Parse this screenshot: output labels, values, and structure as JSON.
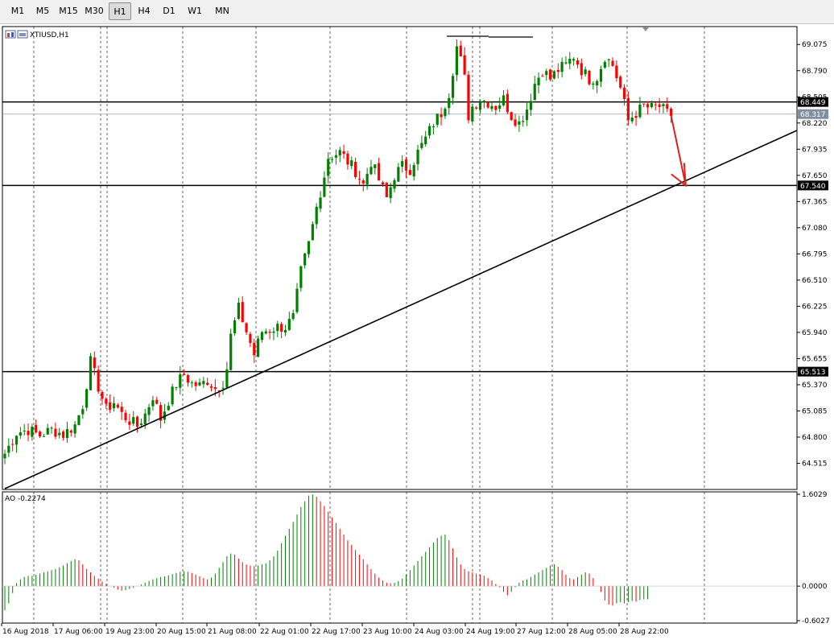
{
  "toolbar": {
    "timeframes": [
      "M1",
      "M5",
      "M15",
      "M30",
      "H1",
      "H4",
      "D1",
      "W1",
      "MN"
    ],
    "active": "H1"
  },
  "colors": {
    "bull": "#008000",
    "bear": "#ff0000",
    "lines": "#000000",
    "price_line": "#8fa5b8",
    "arrow": "#e02020",
    "grid": "#000000",
    "label_bg": "#000000",
    "price_label_bg": "#7f8f9f"
  },
  "chart_data": [
    {
      "type": "candlestick",
      "title": "XTIUSD,H1",
      "icon": "chart-window-icon",
      "ylim": [
        64.23,
        69.27
      ],
      "yticks": [
        "69.075",
        "68.790",
        "68.505",
        "68.220",
        "67.935",
        "67.650",
        "67.365",
        "67.080",
        "66.795",
        "66.510",
        "66.225",
        "65.940",
        "65.655",
        "65.370",
        "65.085",
        "64.800",
        "64.515"
      ],
      "xticks": [
        "16 Aug 2018",
        "17 Aug 06:00",
        "19 Aug 23:00",
        "20 Aug 15:00",
        "21 Aug 08:00",
        "22 Aug 01:00",
        "22 Aug 17:00",
        "23 Aug 10:00",
        "24 Aug 03:00",
        "24 Aug 19:00",
        "27 Aug 12:00",
        "28 Aug 05:00",
        "28 Aug 22:00"
      ],
      "horizontal_levels": [
        {
          "price": 68.449,
          "label": "68.449"
        },
        {
          "price": 67.54,
          "label": "67.540"
        },
        {
          "price": 65.513,
          "label": "65.513"
        }
      ],
      "current_price": {
        "price": 68.317,
        "label": "68.317"
      },
      "close_path": [
        [
          0,
          64.62
        ],
        [
          3,
          64.85
        ],
        [
          6,
          64.88
        ],
        [
          9,
          64.82
        ],
        [
          12,
          64.88
        ],
        [
          15,
          64.83
        ],
        [
          18,
          64.93
        ],
        [
          20,
          65.15
        ],
        [
          22,
          65.62
        ],
        [
          24,
          65.35
        ],
        [
          26,
          65.1
        ],
        [
          28,
          65.18
        ],
        [
          30,
          65.05
        ],
        [
          32,
          64.98
        ],
        [
          34,
          64.92
        ],
        [
          36,
          65.05
        ],
        [
          38,
          65.25
        ],
        [
          40,
          65.0
        ],
        [
          42,
          65.2
        ],
        [
          44,
          65.38
        ],
        [
          46,
          65.48
        ],
        [
          48,
          65.38
        ],
        [
          50,
          65.36
        ],
        [
          52,
          65.42
        ],
        [
          54,
          65.33
        ],
        [
          56,
          65.4
        ],
        [
          57,
          65.55
        ],
        [
          58,
          65.9
        ],
        [
          60,
          66.2
        ],
        [
          62,
          65.95
        ],
        [
          64,
          65.7
        ],
        [
          66,
          65.95
        ],
        [
          68,
          65.97
        ],
        [
          70,
          66.0
        ],
        [
          72,
          66.0
        ],
        [
          74,
          66.1
        ],
        [
          76,
          66.6
        ],
        [
          78,
          66.9
        ],
        [
          80,
          67.3
        ],
        [
          82,
          67.65
        ],
        [
          83,
          67.85
        ],
        [
          86,
          67.9
        ],
        [
          88,
          67.8
        ],
        [
          90,
          67.7
        ],
        [
          92,
          67.55
        ],
        [
          94,
          67.8
        ],
        [
          96,
          67.6
        ],
        [
          98,
          67.4
        ],
        [
          100,
          67.65
        ],
        [
          102,
          67.75
        ],
        [
          104,
          67.72
        ],
        [
          106,
          67.9
        ],
        [
          108,
          68.05
        ],
        [
          110,
          68.22
        ],
        [
          112,
          68.33
        ],
        [
          114,
          68.55
        ],
        [
          115,
          68.8
        ],
        [
          116,
          69.05
        ],
        [
          117,
          68.9
        ],
        [
          118,
          68.7
        ],
        [
          119,
          68.3
        ],
        [
          120,
          68.4
        ],
        [
          122,
          68.48
        ],
        [
          124,
          68.45
        ],
        [
          126,
          68.4
        ],
        [
          128,
          68.48
        ],
        [
          130,
          68.3
        ],
        [
          132,
          68.22
        ],
        [
          134,
          68.38
        ],
        [
          136,
          68.65
        ],
        [
          138,
          68.8
        ],
        [
          140,
          68.7
        ],
        [
          142,
          68.8
        ],
        [
          144,
          68.85
        ],
        [
          146,
          68.95
        ],
        [
          148,
          68.8
        ],
        [
          150,
          68.7
        ],
        [
          152,
          68.72
        ],
        [
          154,
          68.95
        ],
        [
          156,
          68.85
        ],
        [
          158,
          68.6
        ],
        [
          160,
          68.25
        ],
        [
          162,
          68.33
        ],
        [
          164,
          68.4
        ],
        [
          166,
          68.38
        ],
        [
          168,
          68.4
        ],
        [
          170,
          68.32
        ],
        [
          171,
          68.31
        ]
      ],
      "projection_arrow": {
        "from": [
          171,
          68.3
        ],
        "to": [
          176,
          67.54
        ]
      }
    },
    {
      "type": "bar",
      "title": "AO -0.2274",
      "ylim": [
        -0.6027,
        1.6029
      ],
      "yticks": [
        "1.6029",
        "0.0000",
        "-0.6027"
      ],
      "bars": [
        -0.42,
        -0.3,
        -0.12,
        0.05,
        0.12,
        0.16,
        0.18,
        0.18,
        0.2,
        0.22,
        0.24,
        0.26,
        0.28,
        0.3,
        0.33,
        0.36,
        0.4,
        0.44,
        0.47,
        0.45,
        0.38,
        0.3,
        0.24,
        0.18,
        0.13,
        0.08,
        0.04,
        0.0,
        -0.03,
        -0.06,
        -0.08,
        -0.07,
        -0.05,
        -0.03,
        0.0,
        0.03,
        0.06,
        0.09,
        0.12,
        0.14,
        0.16,
        0.17,
        0.19,
        0.21,
        0.23,
        0.25,
        0.26,
        0.25,
        0.23,
        0.2,
        0.17,
        0.14,
        0.12,
        0.15,
        0.22,
        0.32,
        0.42,
        0.52,
        0.57,
        0.55,
        0.48,
        0.42,
        0.38,
        0.36,
        0.35,
        0.36,
        0.38,
        0.4,
        0.45,
        0.52,
        0.62,
        0.75,
        0.88,
        1.0,
        1.12,
        1.25,
        1.38,
        1.48,
        1.58,
        1.6,
        1.56,
        1.48,
        1.4,
        1.3,
        1.2,
        1.1,
        1.0,
        0.9,
        0.8,
        0.72,
        0.63,
        0.55,
        0.47,
        0.38,
        0.3,
        0.22,
        0.15,
        0.1,
        0.06,
        0.05,
        0.06,
        0.09,
        0.13,
        0.2,
        0.28,
        0.36,
        0.44,
        0.52,
        0.6,
        0.68,
        0.76,
        0.84,
        0.88,
        0.9,
        0.8,
        0.66,
        0.5,
        0.38,
        0.3,
        0.26,
        0.24,
        0.22,
        0.2,
        0.18,
        0.14,
        0.1,
        0.04,
        -0.02,
        -0.1,
        -0.16,
        -0.1,
        -0.02,
        0.06,
        0.1,
        0.12,
        0.16,
        0.2,
        0.24,
        0.28,
        0.32,
        0.36,
        0.38,
        0.34,
        0.28,
        0.2,
        0.14,
        0.12,
        0.16,
        0.2,
        0.24,
        0.22,
        0.14,
        0.0,
        -0.1,
        -0.25,
        -0.32,
        -0.34,
        -0.3,
        -0.28,
        -0.3,
        -0.28,
        -0.26,
        -0.27,
        -0.24,
        -0.23,
        -0.23
      ]
    }
  ]
}
